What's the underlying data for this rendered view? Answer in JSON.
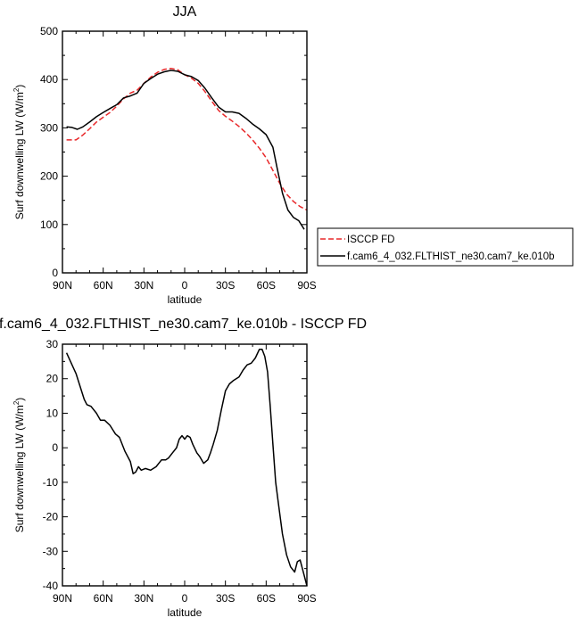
{
  "chart_data": [
    {
      "type": "line",
      "title": "JJA",
      "xlabel": "latitude",
      "ylabel_main": "Surf downwelling LW (W/m",
      "ylabel_sup": "2",
      "ylabel_tail": ")",
      "x_ticks": [
        90,
        60,
        30,
        0,
        -30,
        -60,
        -90
      ],
      "x_tick_labels": [
        "90N",
        "60N",
        "30N",
        "0",
        "30S",
        "60S",
        "90S"
      ],
      "xlim": [
        90,
        -90
      ],
      "ylim": [
        0,
        500
      ],
      "y_ticks": [
        0,
        100,
        200,
        300,
        400,
        500
      ],
      "y_tick_labels": [
        "0",
        "100",
        "200",
        "300",
        "400",
        "500"
      ],
      "legend_position": "right",
      "series": [
        {
          "name": "ISCCP FD",
          "color": "#e8282a",
          "dash": "dashed",
          "x": [
            87,
            80,
            75,
            70,
            65,
            60,
            55,
            50,
            45,
            40,
            35,
            30,
            25,
            20,
            15,
            10,
            5,
            0,
            -5,
            -10,
            -15,
            -20,
            -25,
            -30,
            -35,
            -40,
            -45,
            -50,
            -55,
            -60,
            -65,
            -70,
            -75,
            -80,
            -85,
            -90
          ],
          "y": [
            275,
            275,
            285,
            298,
            312,
            322,
            332,
            345,
            360,
            372,
            378,
            392,
            405,
            415,
            421,
            423,
            420,
            410,
            403,
            392,
            375,
            355,
            336,
            324,
            314,
            303,
            290,
            275,
            258,
            238,
            212,
            185,
            163,
            148,
            137,
            130
          ]
        },
        {
          "name": "f.cam6_4_032.FLTHIST_ne30.cam7_ke.010b",
          "color": "#000000",
          "dash": "solid",
          "x": [
            87,
            83,
            79,
            75,
            70,
            65,
            60,
            55,
            50,
            45,
            40,
            35,
            30,
            25,
            20,
            15,
            10,
            5,
            0,
            -5,
            -10,
            -15,
            -20,
            -25,
            -30,
            -35,
            -40,
            -45,
            -50,
            -55,
            -60,
            -65,
            -68,
            -72,
            -76,
            -80,
            -84,
            -88
          ],
          "y": [
            302,
            301,
            297,
            302,
            312,
            323,
            332,
            340,
            348,
            362,
            366,
            372,
            392,
            402,
            411,
            416,
            419,
            417,
            410,
            406,
            398,
            382,
            362,
            343,
            333,
            333,
            330,
            320,
            308,
            298,
            286,
            260,
            218,
            165,
            130,
            115,
            108,
            90
          ]
        }
      ]
    },
    {
      "type": "line",
      "title": "f.cam6_4_032.FLTHIST_ne30.cam7_ke.010b - ISCCP FD",
      "xlabel": "latitude",
      "ylabel_main": "Surf downwelling LW (W/m",
      "ylabel_sup": "2",
      "ylabel_tail": ")",
      "x_ticks": [
        90,
        60,
        30,
        0,
        -30,
        -60,
        -90
      ],
      "x_tick_labels": [
        "90N",
        "60N",
        "30N",
        "0",
        "30S",
        "60S",
        "90S"
      ],
      "xlim": [
        90,
        -90
      ],
      "ylim": [
        -40,
        30
      ],
      "y_ticks": [
        -40,
        -30,
        -20,
        -10,
        0,
        10,
        20,
        30
      ],
      "y_tick_labels": [
        "-40",
        "-30",
        "-20",
        "-10",
        "0",
        "10",
        "20",
        "30"
      ],
      "series": [
        {
          "color": "#000000",
          "dash": "solid",
          "x": [
            87,
            80,
            74,
            72,
            69,
            65,
            62,
            59,
            55,
            51,
            48,
            44,
            40,
            38,
            36,
            34,
            32,
            29,
            25,
            21,
            17,
            14,
            12,
            9,
            6,
            4,
            2,
            0,
            -2,
            -4,
            -6,
            -9,
            -11,
            -14,
            -17,
            -19,
            -21,
            -24,
            -27,
            -30,
            -33,
            -36,
            -40,
            -43,
            -46,
            -49,
            -52,
            -55,
            -57,
            -59,
            -61,
            -63,
            -65,
            -67,
            -69,
            -72,
            -75,
            -78,
            -81,
            -83,
            -85,
            -88,
            -90
          ],
          "y": [
            27.5,
            21.5,
            14,
            12.5,
            12,
            10,
            8,
            8,
            6.5,
            4,
            3,
            -1,
            -4,
            -7.5,
            -7,
            -5.5,
            -6.5,
            -6,
            -6.5,
            -5.5,
            -3.5,
            -3.5,
            -3,
            -1.5,
            0,
            2.5,
            3.5,
            2.5,
            3.5,
            3,
            1,
            -1.5,
            -2.5,
            -4.5,
            -3.5,
            -1.5,
            1,
            5,
            11,
            16.5,
            18.5,
            19.5,
            20.5,
            22.5,
            24,
            24.5,
            26,
            28.5,
            28.5,
            26.5,
            22,
            12,
            1,
            -10,
            -16,
            -25,
            -31,
            -34.5,
            -36,
            -33,
            -32.5,
            -37,
            -40
          ]
        }
      ]
    }
  ]
}
